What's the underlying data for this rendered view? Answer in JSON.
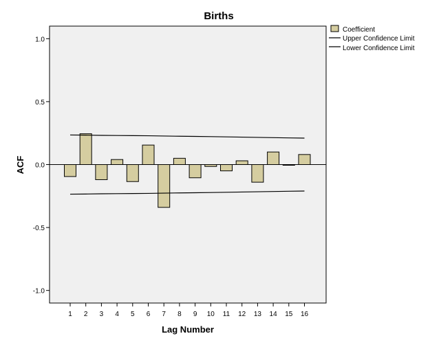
{
  "chart_data": {
    "type": "bar",
    "title": "Births",
    "xlabel": "Lag Number",
    "ylabel": "ACF",
    "categories": [
      "1",
      "2",
      "3",
      "4",
      "5",
      "6",
      "7",
      "8",
      "9",
      "10",
      "11",
      "12",
      "13",
      "14",
      "15",
      "16"
    ],
    "series": [
      {
        "name": "Coefficient",
        "values": [
          -0.095,
          0.245,
          -0.12,
          0.04,
          -0.135,
          0.155,
          -0.34,
          0.05,
          -0.105,
          -0.015,
          -0.05,
          0.03,
          -0.14,
          0.1,
          -0.005,
          0.08
        ]
      }
    ],
    "upper_confidence_limit": [
      0.235,
      0.234,
      0.232,
      0.231,
      0.23,
      0.229,
      0.227,
      0.225,
      0.224,
      0.222,
      0.22,
      0.218,
      0.216,
      0.214,
      0.212,
      0.21
    ],
    "lower_confidence_limit": [
      -0.235,
      -0.234,
      -0.232,
      -0.231,
      -0.23,
      -0.229,
      -0.227,
      -0.225,
      -0.224,
      -0.222,
      -0.22,
      -0.218,
      -0.216,
      -0.214,
      -0.212,
      -0.21
    ],
    "ylim": [
      -1.1,
      1.1
    ],
    "yticks": [
      "1.0",
      "0.5",
      "0.0",
      "-0.5",
      "-1.0"
    ],
    "ytick_values": [
      1.0,
      0.5,
      0.0,
      -0.5,
      -1.0
    ],
    "legend": {
      "placement": "top-right, outside plot",
      "items": [
        "Coefficient",
        "Upper Confidence Limit",
        "Lower Confidence Limit"
      ]
    },
    "grid": false,
    "colors": {
      "bar_fill": "#d5cda0",
      "plot_background": "#f0f0f0",
      "line": "#000000"
    }
  }
}
